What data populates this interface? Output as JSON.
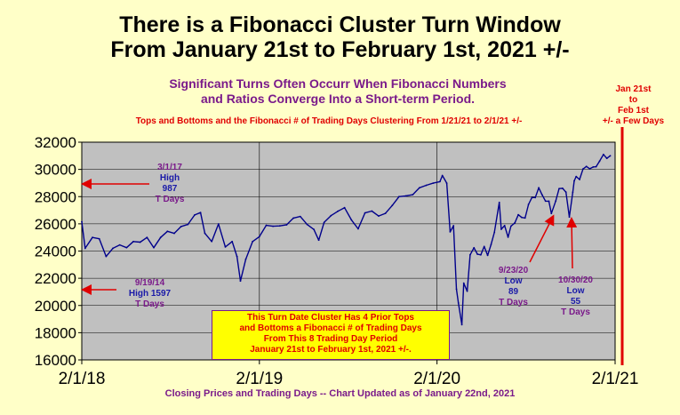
{
  "title_line1": "There is a Fibonacci Cluster Turn Window",
  "title_line2": "From January 21st to February 1st, 2021 +/-",
  "subtitle_line1": "Significant Turns Often Occurr When Fibonacci Numbers",
  "subtitle_line2": "and Ratios Converge Into a Short-term Period.",
  "red_subtitle": "Tops and Bottoms and the Fibonacci # of Trading Days Clustering From 1/21/21 to 2/1/21 +/-",
  "window_note": [
    "Jan 21st",
    "to",
    "Feb 1st",
    "+/- a Few Days"
  ],
  "annotations": {
    "top_2017": [
      "3/1/17",
      "High",
      "987",
      "T Days"
    ],
    "low_2014": [
      "9/19/14",
      "High 1597",
      "T Days"
    ],
    "low_sep2020": [
      "9/23/20",
      "Low",
      "89",
      "T Days"
    ],
    "low_oct2020": [
      "10/30/20",
      "Low",
      "55",
      "T Days"
    ]
  },
  "callout": [
    "This Turn Date Cluster Has 4 Prior Tops",
    "and Bottoms a Fibonacci # of Trading Days",
    "From This 8 Trading Day Period",
    "January 21st to February 1st, 2021 +/-."
  ],
  "footer": "Closing Prices and Trading Days -- Chart Updated as of January 22nd, 2021",
  "colors": {
    "background": "#ffffc8",
    "plot_area": "#c0c0c0",
    "line": "#00008b",
    "accent_red": "#e00000",
    "purple": "#7a1a8a",
    "callout_fill": "#ffff00"
  },
  "chart_data": {
    "type": "line",
    "title": "There is a Fibonacci Cluster Turn Window From January 21st to February 1st, 2021 +/-",
    "xlabel": "",
    "ylabel": "",
    "ylim": [
      16000,
      32000
    ],
    "yticks": [
      16000,
      18000,
      20000,
      22000,
      24000,
      26000,
      28000,
      30000,
      32000
    ],
    "xticks": [
      "2/1/18",
      "2/1/19",
      "2/1/20",
      "2/1/21"
    ],
    "xlim": [
      "2018-02-01",
      "2021-02-01"
    ],
    "grid": true,
    "legend": "none",
    "series": [
      {
        "x": [
          "2018-02-01",
          "2018-02-08",
          "2018-02-23",
          "2018-03-09",
          "2018-03-23",
          "2018-04-06",
          "2018-04-20",
          "2018-05-04",
          "2018-05-18",
          "2018-06-01",
          "2018-06-15",
          "2018-06-29",
          "2018-07-13",
          "2018-07-27",
          "2018-08-10",
          "2018-08-24",
          "2018-09-07",
          "2018-09-21",
          "2018-10-03",
          "2018-10-12",
          "2018-10-26",
          "2018-11-09",
          "2018-11-23",
          "2018-12-07",
          "2018-12-17",
          "2018-12-24",
          "2019-01-04",
          "2019-01-18",
          "2019-02-01",
          "2019-02-15",
          "2019-03-01",
          "2019-03-15",
          "2019-03-29",
          "2019-04-12",
          "2019-04-26",
          "2019-05-10",
          "2019-05-24",
          "2019-06-03",
          "2019-06-14",
          "2019-06-28",
          "2019-07-12",
          "2019-07-26",
          "2019-08-09",
          "2019-08-23",
          "2019-09-06",
          "2019-09-20",
          "2019-10-04",
          "2019-10-18",
          "2019-11-01",
          "2019-11-15",
          "2019-11-29",
          "2019-12-13",
          "2019-12-27",
          "2020-01-10",
          "2020-01-24",
          "2020-02-07",
          "2020-02-12",
          "2020-02-21",
          "2020-02-28",
          "2020-03-06",
          "2020-03-12",
          "2020-03-16",
          "2020-03-23",
          "2020-03-27",
          "2020-04-03",
          "2020-04-09",
          "2020-04-17",
          "2020-04-24",
          "2020-05-01",
          "2020-05-08",
          "2020-05-15",
          "2020-05-22",
          "2020-05-29",
          "2020-06-08",
          "2020-06-12",
          "2020-06-19",
          "2020-06-26",
          "2020-07-02",
          "2020-07-10",
          "2020-07-17",
          "2020-07-24",
          "2020-07-31",
          "2020-08-07",
          "2020-08-14",
          "2020-08-21",
          "2020-08-28",
          "2020-09-04",
          "2020-09-11",
          "2020-09-18",
          "2020-09-23",
          "2020-10-02",
          "2020-10-09",
          "2020-10-16",
          "2020-10-23",
          "2020-10-30",
          "2020-11-06",
          "2020-11-09",
          "2020-11-13",
          "2020-11-20",
          "2020-11-27",
          "2020-12-04",
          "2020-12-11",
          "2020-12-18",
          "2020-12-24",
          "2020-12-31",
          "2021-01-08",
          "2021-01-15",
          "2021-01-22"
        ],
        "y": [
          26150,
          24200,
          25000,
          24900,
          23600,
          24200,
          24450,
          24250,
          24700,
          24650,
          25000,
          24250,
          25000,
          25450,
          25300,
          25800,
          25950,
          26650,
          26830,
          25300,
          24700,
          25990,
          24300,
          24700,
          23600,
          21800,
          23400,
          24700,
          25060,
          25890,
          25820,
          25850,
          25930,
          26420,
          26540,
          25950,
          25590,
          24800,
          26100,
          26600,
          26920,
          27190,
          26290,
          25630,
          26800,
          26940,
          26570,
          26770,
          27350,
          28000,
          28050,
          28140,
          28650,
          28830,
          28990,
          29100,
          29550,
          28990,
          25410,
          25860,
          21200,
          20180,
          18590,
          21640,
          21050,
          23720,
          24240,
          23770,
          23720,
          24330,
          23680,
          24470,
          25380,
          27570,
          25600,
          25870,
          25020,
          25830,
          26070,
          26670,
          26470,
          26430,
          27430,
          27930,
          27930,
          28650,
          28130,
          27670,
          27660,
          26760,
          27680,
          28590,
          28610,
          28330,
          26500,
          28320,
          29160,
          29480,
          29260,
          30030,
          30220,
          30050,
          30180,
          30200,
          30600,
          31100,
          30810,
          31000
        ]
      }
    ]
  }
}
